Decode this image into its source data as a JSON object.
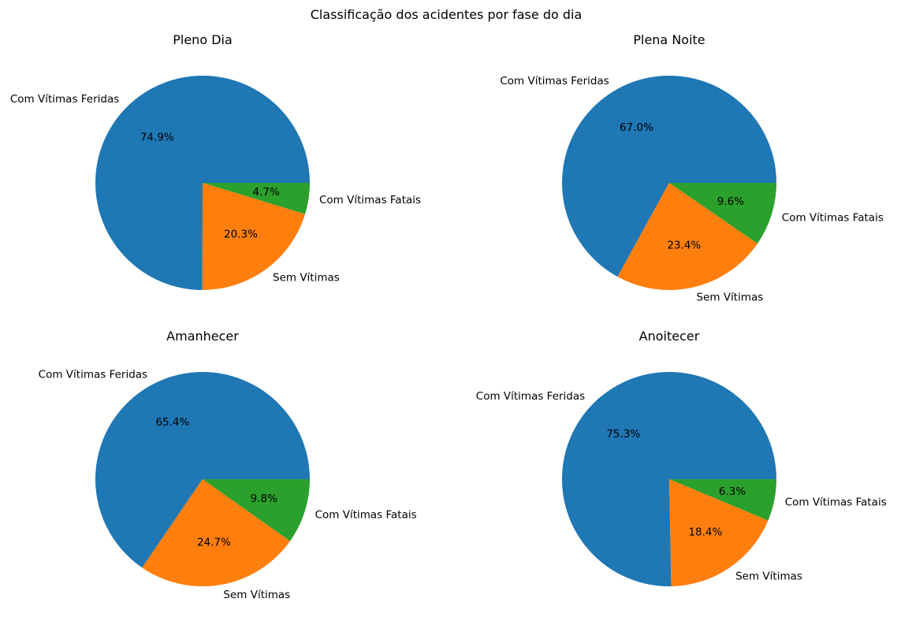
{
  "figure": {
    "suptitle": "Classificação dos acidentes por fase do dia"
  },
  "colors": {
    "Com Vítimas Feridas": "#1f77b4",
    "Sem Vítimas": "#ff7f0e",
    "Com Vítimas Fatais": "#2ca02c"
  },
  "chart_data": [
    {
      "type": "pie",
      "title": "Pleno Dia",
      "labels": [
        "Com Vítimas Feridas",
        "Sem Vítimas",
        "Com Vítimas Fatais"
      ],
      "values": [
        74.9,
        20.3,
        4.7
      ],
      "autopct": [
        "74.9%",
        "20.3%",
        "4.7%"
      ]
    },
    {
      "type": "pie",
      "title": "Plena Noite",
      "labels": [
        "Com Vítimas Feridas",
        "Sem Vítimas",
        "Com Vítimas Fatais"
      ],
      "values": [
        67.0,
        23.4,
        9.6
      ],
      "autopct": [
        "67.0%",
        "23.4%",
        "9.6%"
      ]
    },
    {
      "type": "pie",
      "title": "Amanhecer",
      "labels": [
        "Com Vítimas Feridas",
        "Sem Vítimas",
        "Com Vítimas Fatais"
      ],
      "values": [
        65.4,
        24.7,
        9.8
      ],
      "autopct": [
        "65.4%",
        "24.7%",
        "9.8%"
      ]
    },
    {
      "type": "pie",
      "title": "Anoitecer",
      "labels": [
        "Com Vítimas Feridas",
        "Sem Vítimas",
        "Com Vítimas Fatais"
      ],
      "values": [
        75.3,
        18.4,
        6.3
      ],
      "autopct": [
        "75.3%",
        "18.4%",
        "6.3%"
      ]
    }
  ]
}
